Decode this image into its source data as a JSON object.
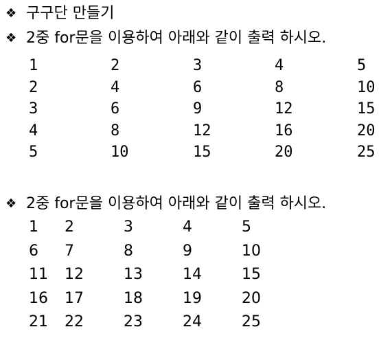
{
  "bullet_symbol": "❖",
  "title": "구구단 만들기",
  "instruction_1": "2중 for문을 이용하여 아래와 같이 출력 하시오.",
  "table_1": [
    [
      "1",
      "2",
      "3",
      "4",
      "5"
    ],
    [
      "2",
      "4",
      "6",
      "8",
      "10"
    ],
    [
      "3",
      "6",
      "9",
      "12",
      "15"
    ],
    [
      "4",
      "8",
      "12",
      "16",
      "20"
    ],
    [
      "5",
      "10",
      "15",
      "20",
      "25"
    ]
  ],
  "instruction_2": "2중 for문을 이용하여 아래와 같이 출력 하시오.",
  "table_2": [
    [
      "1",
      "2",
      "3",
      "4",
      "5"
    ],
    [
      "6",
      "7",
      "8",
      "9",
      "10"
    ],
    [
      "11",
      "12",
      "13",
      "14",
      "15"
    ],
    [
      "16",
      "17",
      "18",
      "19",
      "20"
    ],
    [
      "21",
      "22",
      "23",
      "24",
      "25"
    ]
  ]
}
